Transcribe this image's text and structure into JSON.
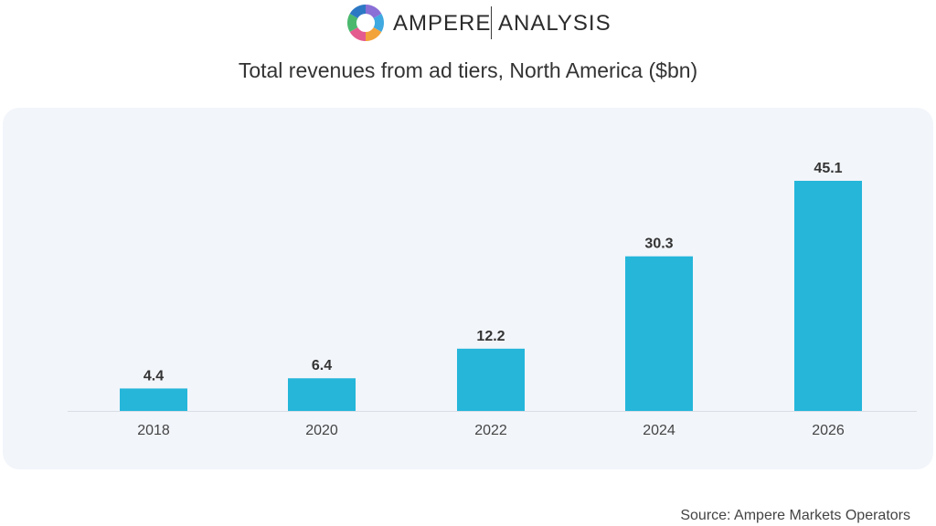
{
  "brand": {
    "name_left": "AMPERE",
    "name_right": "ANALYSIS",
    "logo_icon": "ring-logo-icon",
    "logo_colors": [
      "#8a6fd6",
      "#3fa9e0",
      "#f2a33a",
      "#e45b8f",
      "#4bb86e",
      "#2d78c4"
    ]
  },
  "chart_data": {
    "type": "bar",
    "title": "Total revenues from ad tiers, North America ($bn)",
    "categories": [
      "2018",
      "2020",
      "2022",
      "2024",
      "2026"
    ],
    "values": [
      4.4,
      6.4,
      12.2,
      30.3,
      45.1
    ],
    "value_labels": [
      "4.4",
      "6.4",
      "12.2",
      "30.3",
      "45.1"
    ],
    "xlabel": "",
    "ylabel": "",
    "ylim": [
      0,
      50
    ],
    "grid": false,
    "legend": "none",
    "bar_color": "#25b6da"
  },
  "source": "Source: Ampere Markets Operators"
}
